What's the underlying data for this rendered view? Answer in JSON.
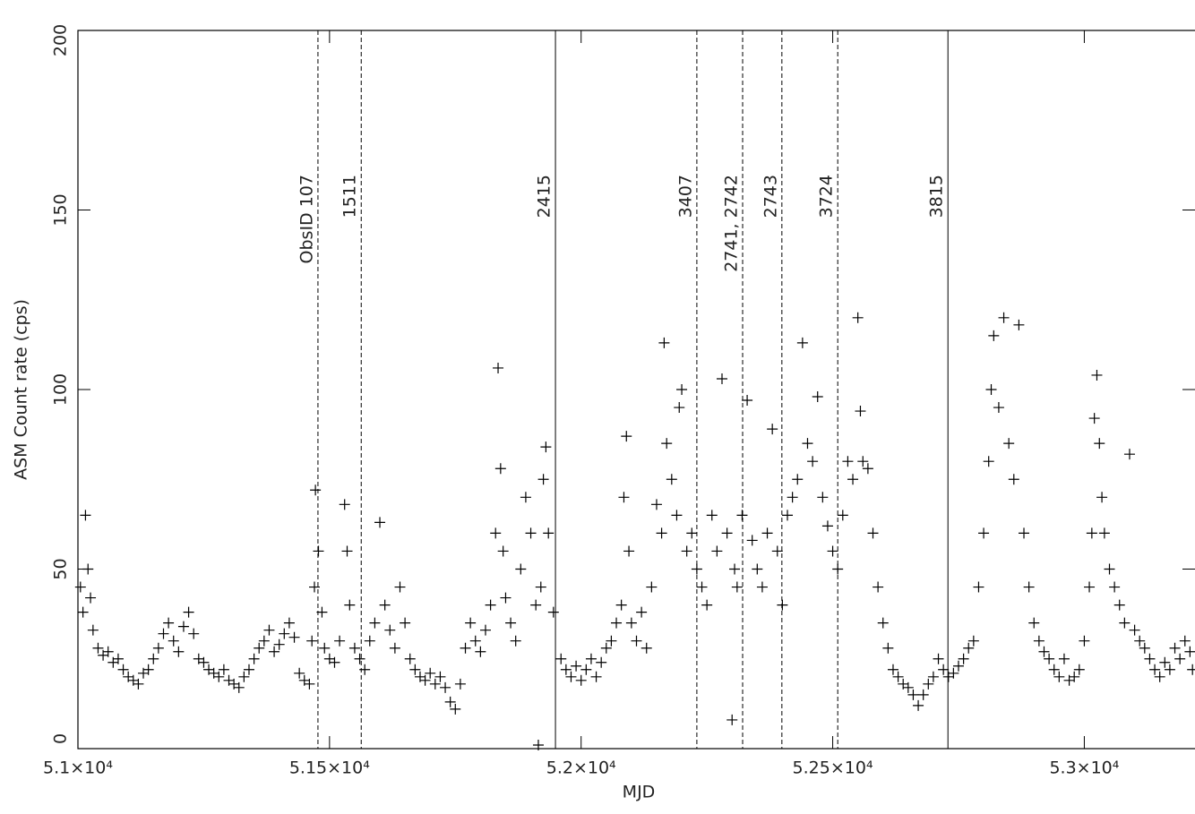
{
  "chart_data": {
    "type": "scatter",
    "x_label": "MJD",
    "y_label": "ASM Count rate (cps)",
    "xlim": [
      51000,
      53220
    ],
    "ylim": [
      0,
      200
    ],
    "xticks": [
      {
        "value": 51000,
        "label": "5.1×10⁴"
      },
      {
        "value": 51500,
        "label": "5.15×10⁴"
      },
      {
        "value": 52000,
        "label": "5.2×10⁴"
      },
      {
        "value": 52500,
        "label": "5.25×10⁴"
      },
      {
        "value": 53000,
        "label": "5.3×10⁴"
      }
    ],
    "yticks": [
      0,
      50,
      100,
      150,
      200
    ],
    "color": "#000000",
    "observations": [
      {
        "x": 51477,
        "label": "ObsID 107",
        "style": "dashed"
      },
      {
        "x": 51563,
        "label": "1511",
        "style": "dashed"
      },
      {
        "x": 51949,
        "label": "2415",
        "style": "solid"
      },
      {
        "x": 52230,
        "label": "3407",
        "style": "dashed"
      },
      {
        "x": 52321,
        "label": "2741, 2742",
        "style": "dashed"
      },
      {
        "x": 52399,
        "label": "2743",
        "style": "dashed"
      },
      {
        "x": 52510,
        "label": "3724",
        "style": "dashed"
      },
      {
        "x": 52729,
        "label": "3815",
        "style": "solid"
      }
    ],
    "x": [
      51005,
      51010,
      51015,
      51020,
      51025,
      51030,
      51040,
      51050,
      51060,
      51070,
      51080,
      51090,
      51100,
      51110,
      51120,
      51130,
      51140,
      51150,
      51160,
      51170,
      51180,
      51190,
      51200,
      51210,
      51220,
      51230,
      51240,
      51250,
      51260,
      51270,
      51280,
      51290,
      51300,
      51310,
      51320,
      51330,
      51340,
      51350,
      51360,
      51370,
      51380,
      51390,
      51400,
      51410,
      51420,
      51430,
      51440,
      51450,
      51460,
      51465,
      51470,
      51472,
      51478,
      51485,
      51490,
      51500,
      51510,
      51520,
      51530,
      51535,
      51540,
      51550,
      51560,
      51570,
      51580,
      51590,
      51600,
      51610,
      51620,
      51630,
      51640,
      51650,
      51660,
      51670,
      51680,
      51690,
      51700,
      51710,
      51720,
      51730,
      51740,
      51750,
      51760,
      51770,
      51780,
      51790,
      51800,
      51810,
      51820,
      51830,
      51835,
      51840,
      51845,
      51850,
      51860,
      51870,
      51880,
      51890,
      51900,
      51910,
      51915,
      51920,
      51925,
      51930,
      51935,
      51945,
      51960,
      51970,
      51980,
      51990,
      52000,
      52010,
      52020,
      52030,
      52040,
      52050,
      52060,
      52070,
      52080,
      52085,
      52090,
      52095,
      52100,
      52110,
      52120,
      52130,
      52140,
      52150,
      52160,
      52165,
      52170,
      52180,
      52190,
      52195,
      52200,
      52210,
      52220,
      52230,
      52240,
      52250,
      52260,
      52270,
      52280,
      52290,
      52300,
      52305,
      52310,
      52320,
      52330,
      52340,
      52350,
      52360,
      52370,
      52380,
      52390,
      52400,
      52410,
      52420,
      52430,
      52440,
      52450,
      52460,
      52470,
      52480,
      52490,
      52500,
      52510,
      52520,
      52530,
      52540,
      52550,
      52555,
      52560,
      52570,
      52580,
      52590,
      52600,
      52610,
      52620,
      52630,
      52640,
      52650,
      52660,
      52670,
      52680,
      52690,
      52700,
      52710,
      52720,
      52730,
      52740,
      52750,
      52760,
      52770,
      52780,
      52790,
      52800,
      52810,
      52815,
      52820,
      52830,
      52840,
      52850,
      52860,
      52870,
      52880,
      52890,
      52900,
      52910,
      52920,
      52930,
      52940,
      52950,
      52960,
      52970,
      52980,
      52990,
      53000,
      53010,
      53015,
      53020,
      53025,
      53030,
      53035,
      53040,
      53050,
      53060,
      53070,
      53080,
      53090,
      53100,
      53110,
      53120,
      53130,
      53140,
      53150,
      53160,
      53170,
      53180,
      53190,
      53200,
      53210,
      53215
    ],
    "values": [
      45,
      38,
      65,
      50,
      42,
      33,
      28,
      26,
      27,
      24,
      25,
      22,
      20,
      19,
      18,
      21,
      22,
      25,
      28,
      32,
      35,
      30,
      27,
      34,
      38,
      32,
      25,
      24,
      22,
      21,
      20,
      22,
      19,
      18,
      17,
      20,
      22,
      25,
      28,
      30,
      33,
      27,
      29,
      32,
      35,
      31,
      21,
      19,
      18,
      30,
      45,
      72,
      55,
      38,
      28,
      25,
      24,
      30,
      68,
      55,
      40,
      28,
      25,
      22,
      30,
      35,
      63,
      40,
      33,
      28,
      45,
      35,
      25,
      22,
      20,
      19,
      21,
      18,
      20,
      17,
      13,
      11,
      18,
      28,
      35,
      30,
      27,
      33,
      40,
      60,
      106,
      78,
      55,
      42,
      35,
      30,
      50,
      70,
      60,
      40,
      1,
      45,
      75,
      84,
      60,
      38,
      25,
      22,
      20,
      23,
      19,
      22,
      25,
      20,
      24,
      28,
      30,
      35,
      40,
      70,
      87,
      55,
      35,
      30,
      38,
      28,
      45,
      68,
      60,
      113,
      85,
      75,
      65,
      95,
      100,
      55,
      60,
      50,
      45,
      40,
      65,
      55,
      103,
      60,
      8,
      50,
      45,
      65,
      97,
      58,
      50,
      45,
      60,
      89,
      55,
      40,
      65,
      70,
      75,
      113,
      85,
      80,
      98,
      70,
      62,
      55,
      50,
      65,
      80,
      75,
      120,
      94,
      80,
      78,
      60,
      45,
      35,
      28,
      22,
      20,
      18,
      17,
      15,
      12,
      15,
      18,
      20,
      25,
      22,
      20,
      21,
      23,
      25,
      28,
      30,
      45,
      60,
      80,
      100,
      115,
      95,
      120,
      85,
      75,
      118,
      60,
      45,
      35,
      30,
      27,
      25,
      22,
      20,
      25,
      19,
      20,
      22,
      30,
      45,
      60,
      92,
      104,
      85,
      70,
      60,
      50,
      45,
      40,
      35,
      82,
      33,
      30,
      28,
      25,
      22,
      20,
      24,
      22,
      28,
      25,
      30,
      27,
      22
    ]
  }
}
